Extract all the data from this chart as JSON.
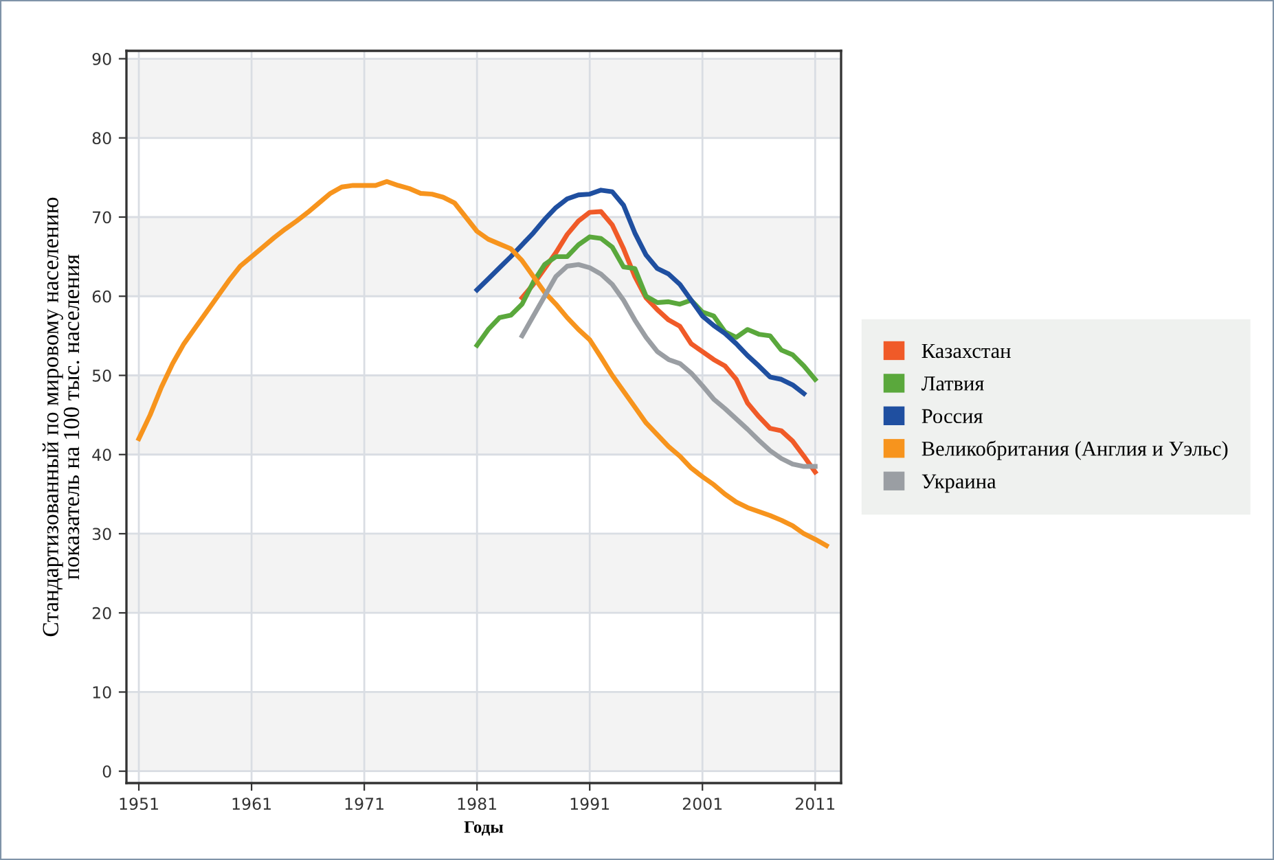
{
  "chart_data": {
    "type": "line",
    "xlabel": "Годы",
    "ylabel": "Стандартизованный по мировому населению\nпоказатель на 100 тыс. населения",
    "xlim": [
      1949.9,
      2013.3
    ],
    "ylim": [
      -1.5,
      91
    ],
    "xticks": [
      1951,
      1961,
      1971,
      1981,
      1991,
      2001,
      2011
    ],
    "yticks": [
      0,
      10,
      20,
      30,
      40,
      50,
      60,
      70,
      80,
      90
    ],
    "grid": true,
    "legend": "right",
    "line_style": "solid",
    "marker": "none",
    "bands": [
      {
        "axis": "y",
        "from": 0,
        "to": 10,
        "color": "#f3f3f3"
      },
      {
        "axis": "y",
        "from": 20,
        "to": 30,
        "color": "#f3f3f3"
      },
      {
        "axis": "y",
        "from": 40,
        "to": 50,
        "color": "#f3f3f3"
      },
      {
        "axis": "y",
        "from": 60,
        "to": 70,
        "color": "#f3f3f3"
      },
      {
        "axis": "y",
        "from": 80,
        "to": 90,
        "color": "#f3f3f3"
      }
    ],
    "series": [
      {
        "name": "Казахстан",
        "color": "#f05a28",
        "x": [
          1985,
          1986,
          1987,
          1988,
          1989,
          1990,
          1991,
          1992,
          1993,
          1994,
          1995,
          1996,
          1997,
          1998,
          1999,
          2000,
          2001,
          2002,
          2003,
          2004,
          2005,
          2006,
          2007,
          2008,
          2009,
          2010,
          2011
        ],
        "values": [
          59.8,
          61.5,
          63.5,
          65.5,
          67.8,
          69.5,
          70.6,
          70.7,
          69,
          66,
          62.5,
          59.8,
          58.3,
          57,
          56.2,
          54,
          53,
          52,
          51.2,
          49.5,
          46.5,
          44.8,
          43.3,
          43,
          41.7,
          39.8,
          37.8
        ]
      },
      {
        "name": "Латвия",
        "color": "#5aa83c",
        "x": [
          1981,
          1982,
          1983,
          1984,
          1985,
          1986,
          1987,
          1988,
          1989,
          1990,
          1991,
          1992,
          1993,
          1994,
          1995,
          1996,
          1997,
          1998,
          1999,
          2000,
          2001,
          2002,
          2003,
          2004,
          2005,
          2006,
          2007,
          2008,
          2009,
          2010,
          2011
        ],
        "values": [
          53.8,
          55.8,
          57.3,
          57.6,
          59,
          61.8,
          64,
          65,
          65,
          66.5,
          67.5,
          67.3,
          66.2,
          63.7,
          63.5,
          60,
          59.2,
          59.3,
          59,
          59.5,
          58,
          57.5,
          55.5,
          54.8,
          55.8,
          55.2,
          55,
          53.2,
          52.6,
          51.2,
          49.5
        ]
      },
      {
        "name": "Россия",
        "color": "#1f4fa0",
        "x": [
          1981,
          1982,
          1983,
          1984,
          1985,
          1986,
          1987,
          1988,
          1989,
          1990,
          1991,
          1992,
          1993,
          1994,
          1995,
          1996,
          1997,
          1998,
          1999,
          2000,
          2001,
          2002,
          2003,
          2004,
          2005,
          2006,
          2007,
          2008,
          2009,
          2010
        ],
        "values": [
          60.8,
          62.2,
          63.6,
          65,
          66.5,
          68,
          69.7,
          71.2,
          72.3,
          72.8,
          72.9,
          73.4,
          73.2,
          71.5,
          68,
          65.2,
          63.5,
          62.8,
          61.5,
          59.5,
          57.5,
          56.3,
          55.3,
          54,
          52.5,
          51.2,
          49.8,
          49.5,
          48.8,
          47.7
        ]
      },
      {
        "name": "Великобритания (Англия и Уэльс)",
        "color": "#f7941d",
        "x": [
          1951,
          1952,
          1953,
          1954,
          1955,
          1956,
          1957,
          1958,
          1959,
          1960,
          1961,
          1962,
          1963,
          1964,
          1965,
          1966,
          1967,
          1968,
          1969,
          1970,
          1971,
          1972,
          1973,
          1974,
          1975,
          1976,
          1977,
          1978,
          1979,
          1980,
          1981,
          1982,
          1983,
          1984,
          1985,
          1986,
          1987,
          1988,
          1989,
          1990,
          1991,
          1992,
          1993,
          1994,
          1995,
          1996,
          1997,
          1998,
          1999,
          2000,
          2001,
          2002,
          2003,
          2004,
          2005,
          2006,
          2007,
          2008,
          2009,
          2010,
          2011,
          2012
        ],
        "values": [
          42,
          45,
          48.5,
          51.5,
          54,
          56,
          58,
          60,
          62,
          63.8,
          65,
          66.2,
          67.4,
          68.5,
          69.5,
          70.6,
          71.8,
          73,
          73.8,
          74,
          74,
          74,
          74.5,
          74,
          73.6,
          73,
          72.9,
          72.5,
          71.8,
          70,
          68.2,
          67.2,
          66.6,
          66,
          64.5,
          62.5,
          60.5,
          59,
          57.3,
          55.8,
          54.5,
          52.3,
          50,
          48,
          46,
          44,
          42.5,
          41,
          39.8,
          38.3,
          37.2,
          36.2,
          35,
          34,
          33.3,
          32.8,
          32.3,
          31.7,
          31,
          30,
          29.3,
          28.5
        ]
      },
      {
        "name": "Украина",
        "color": "#9a9ea3",
        "x": [
          1985,
          1986,
          1987,
          1988,
          1989,
          1990,
          1991,
          1992,
          1993,
          1994,
          1995,
          1996,
          1997,
          1998,
          1999,
          2000,
          2001,
          2002,
          2003,
          2004,
          2005,
          2006,
          2007,
          2008,
          2009,
          2010,
          2011
        ],
        "values": [
          55,
          57.5,
          60,
          62.5,
          63.8,
          64,
          63.6,
          62.8,
          61.5,
          59.5,
          57,
          54.8,
          53,
          52,
          51.5,
          50.3,
          48.7,
          47,
          45.8,
          44.5,
          43.2,
          41.8,
          40.5,
          39.5,
          38.8,
          38.5,
          38.5
        ]
      }
    ]
  }
}
